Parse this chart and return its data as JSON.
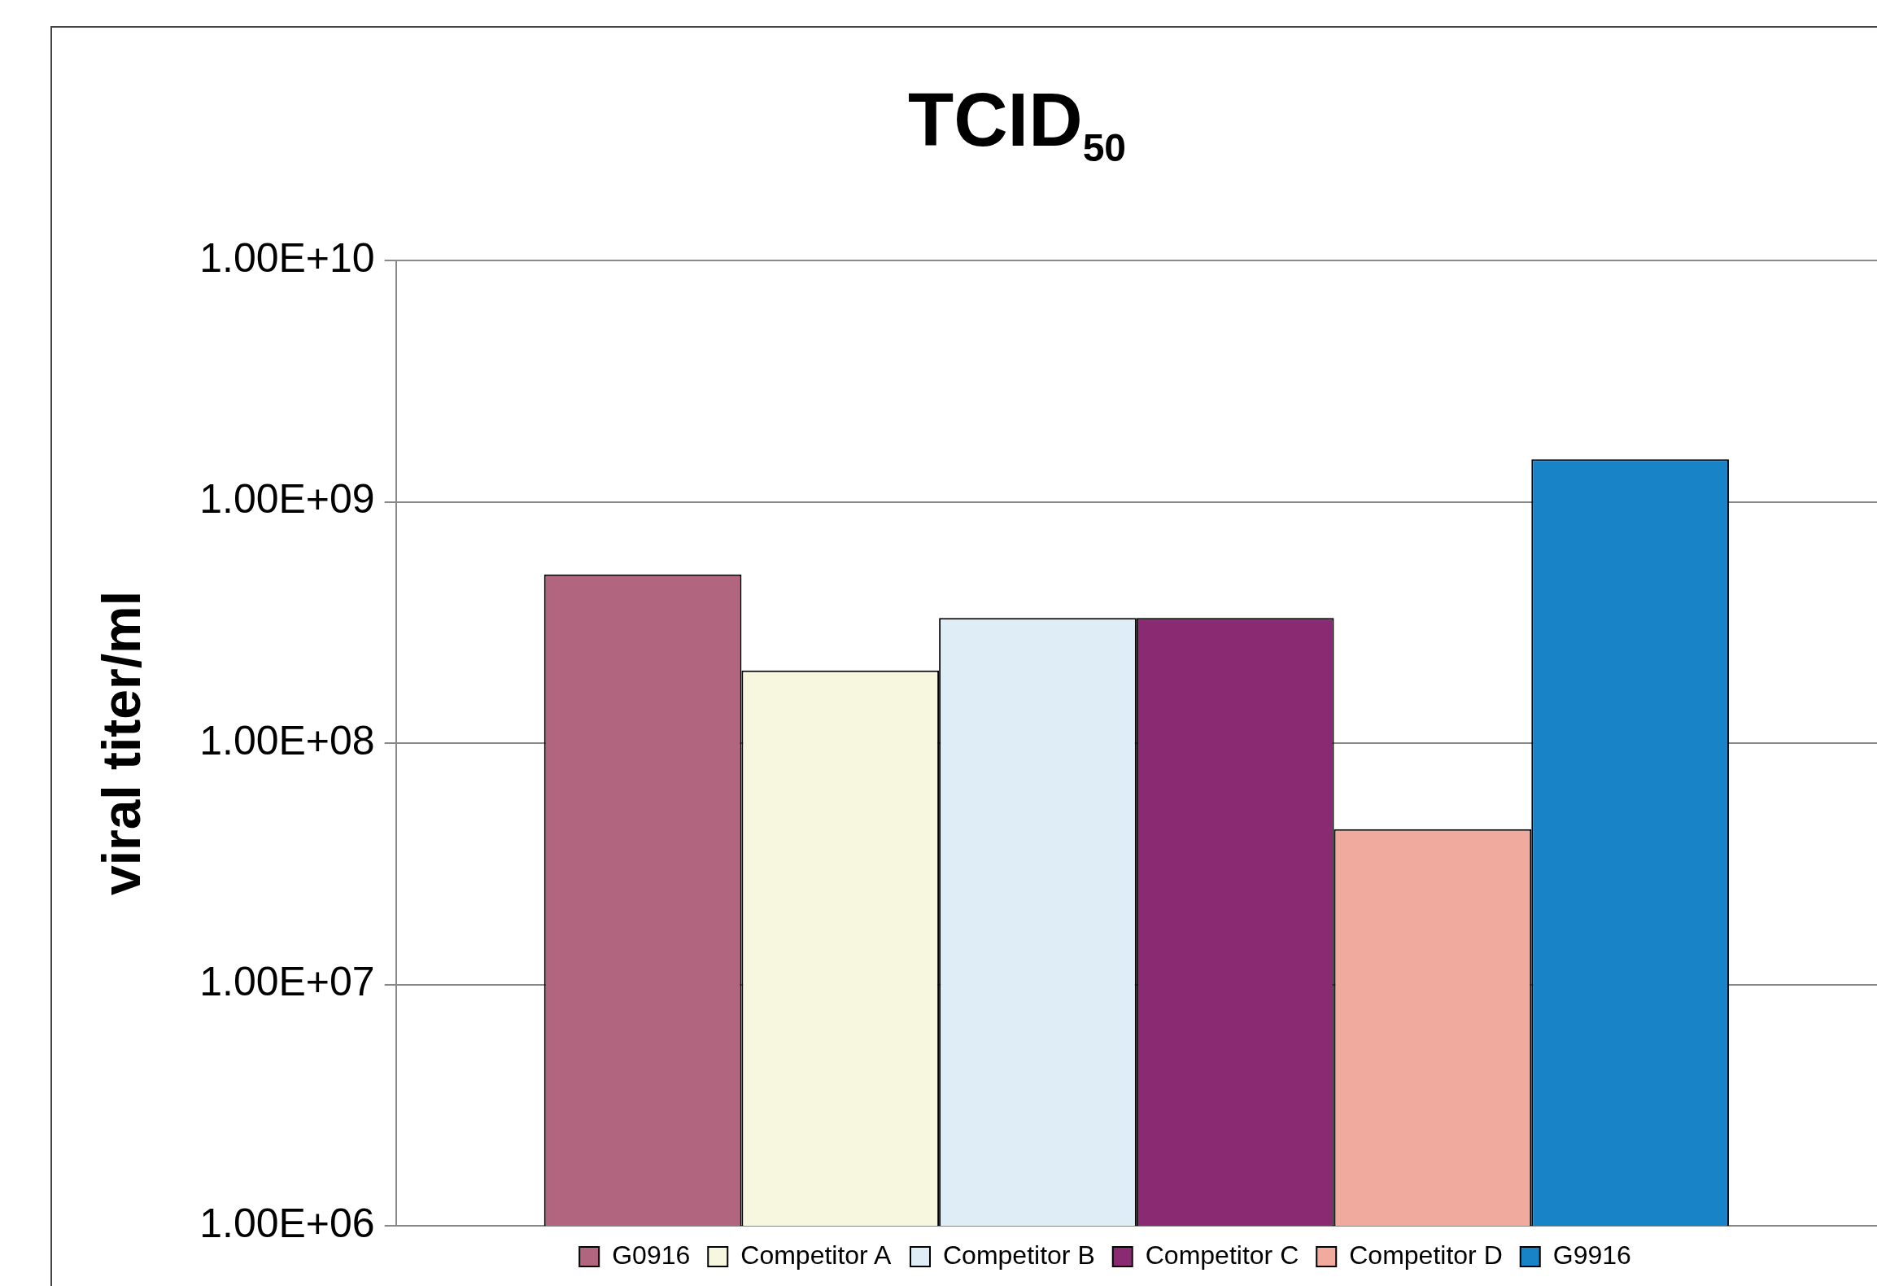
{
  "chart_data": {
    "type": "bar",
    "title": "TCID$_{50}$",
    "ylabel": "viral titer/ml",
    "categories": [
      null
    ],
    "series": [
      {
        "name": "G0916",
        "color": "#b2657f",
        "values": [
          500000000
        ]
      },
      {
        "name": "Competitor A",
        "color": "#f7f7e0",
        "values": [
          200000000
        ]
      },
      {
        "name": "Competitor B",
        "color": "#dfeef6",
        "values": [
          330000000
        ]
      },
      {
        "name": "Competitor C",
        "color": "#892a72",
        "values": [
          330000000
        ]
      },
      {
        "name": "Competitor D",
        "color": "#f1aa9e",
        "values": [
          44000000
        ]
      },
      {
        "name": "G9916",
        "color": "#1883c6",
        "values": [
          1500000000
        ]
      }
    ],
    "log": true,
    "ylim": [
      1000000,
      10000000000
    ],
    "yticks": [
      {
        "value": 1000000,
        "label": "1.00E+06"
      },
      {
        "value": 10000000,
        "label": "1.00E+07"
      },
      {
        "value": 100000000,
        "label": "1.00E+08"
      },
      {
        "value": 1000000000,
        "label": "1.00E+09"
      },
      {
        "value": 10000000000,
        "label": "1.00E+10"
      }
    ],
    "grid": "y",
    "legend": "bottom"
  }
}
